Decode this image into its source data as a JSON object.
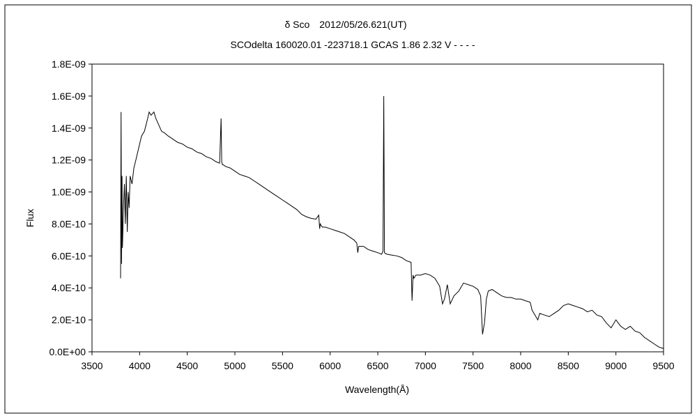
{
  "chart_data": {
    "type": "line",
    "title": "δ Sco　2012/05/26.621(UT)",
    "subtitle": "SCOdelta 160020.01 -223718.1 GCAS 1.86 2.32 V - - - -",
    "xlabel": "Wavelength(Å)",
    "ylabel": "Flux",
    "xlim": [
      3500,
      9500
    ],
    "ylim": [
      0,
      1.8e-09
    ],
    "grid": false,
    "legend": "none",
    "x_ticks": [
      "3500",
      "4000",
      "4500",
      "5000",
      "5500",
      "6000",
      "6500",
      "7000",
      "7500",
      "8000",
      "8500",
      "9000",
      "9500"
    ],
    "y_ticks": [
      "0.0E+00",
      "2.0E-10",
      "4.0E-10",
      "6.0E-10",
      "8.0E-10",
      "1.0E-09",
      "1.2E-09",
      "1.4E-09",
      "1.6E-09",
      "1.8E-09"
    ],
    "line_color": "#000000",
    "series": [
      {
        "x": [
          3800,
          3805,
          3810,
          3815,
          3820,
          3830,
          3840,
          3850,
          3860,
          3870,
          3880,
          3890,
          3900,
          3920,
          3940,
          3960,
          3980,
          4000,
          4020,
          4050,
          4080,
          4100,
          4120,
          4150,
          4170,
          4200,
          4230,
          4260,
          4300,
          4350,
          4400,
          4450,
          4500,
          4550,
          4600,
          4650,
          4700,
          4750,
          4800,
          4840,
          4855,
          4862,
          4870,
          4880,
          4900,
          4950,
          5000,
          5050,
          5100,
          5150,
          5200,
          5250,
          5300,
          5350,
          5400,
          5450,
          5500,
          5550,
          5600,
          5650,
          5700,
          5750,
          5800,
          5850,
          5880,
          5890,
          5896,
          5905,
          5920,
          5950,
          6000,
          6050,
          6100,
          6150,
          6200,
          6250,
          6280,
          6290,
          6300,
          6350,
          6400,
          6450,
          6500,
          6540,
          6555,
          6563,
          6570,
          6580,
          6600,
          6650,
          6700,
          6750,
          6800,
          6850,
          6860,
          6870,
          6880,
          6900,
          6950,
          7000,
          7050,
          7100,
          7150,
          7180,
          7200,
          7230,
          7260,
          7300,
          7350,
          7400,
          7450,
          7500,
          7550,
          7580,
          7600,
          7620,
          7640,
          7660,
          7700,
          7750,
          7800,
          7850,
          7900,
          7950,
          8000,
          8050,
          8100,
          8120,
          8150,
          8180,
          8200,
          8250,
          8300,
          8350,
          8400,
          8450,
          8500,
          8550,
          8600,
          8650,
          8700,
          8750,
          8800,
          8850,
          8900,
          8950,
          9000,
          9050,
          9100,
          9150,
          9200,
          9250,
          9300,
          9350,
          9400,
          9450,
          9500
        ],
        "y": [
          4.6e-10,
          1.5e-09,
          5.5e-10,
          1.1e-09,
          6.5e-10,
          9e-10,
          1.05e-09,
          8e-10,
          1.1e-09,
          7.5e-10,
          1e-09,
          9e-10,
          1.1e-09,
          1.05e-09,
          1.15e-09,
          1.2e-09,
          1.25e-09,
          1.3e-09,
          1.35e-09,
          1.38e-09,
          1.45e-09,
          1.5e-09,
          1.48e-09,
          1.5e-09,
          1.46e-09,
          1.42e-09,
          1.38e-09,
          1.37e-09,
          1.35e-09,
          1.33e-09,
          1.31e-09,
          1.3e-09,
          1.28e-09,
          1.27e-09,
          1.25e-09,
          1.24e-09,
          1.22e-09,
          1.21e-09,
          1.19e-09,
          1.18e-09,
          1.46e-09,
          1.19e-09,
          1.17e-09,
          1.17e-09,
          1.16e-09,
          1.15e-09,
          1.13e-09,
          1.11e-09,
          1.1e-09,
          1.09e-09,
          1.07e-09,
          1.05e-09,
          1.03e-09,
          1.01e-09,
          9.9e-10,
          9.7e-10,
          9.5e-10,
          9.3e-10,
          9.1e-10,
          8.9e-10,
          8.6e-10,
          8.45e-10,
          8.35e-10,
          8.3e-10,
          8.55e-10,
          7.7e-10,
          8e-10,
          7.9e-10,
          7.8e-10,
          7.8e-10,
          7.7e-10,
          7.6e-10,
          7.5e-10,
          7.4e-10,
          7.2e-10,
          7e-10,
          6.8e-10,
          6.2e-10,
          6.6e-10,
          6.6e-10,
          6.4e-10,
          6.3e-10,
          6.2e-10,
          6.1e-10,
          6.3e-10,
          1.6e-09,
          6.2e-10,
          6.15e-10,
          6.1e-10,
          6.05e-10,
          6e-10,
          5.9e-10,
          5.7e-10,
          5.6e-10,
          3.2e-10,
          4.8e-10,
          4.6e-10,
          4.8e-10,
          4.8e-10,
          4.9e-10,
          4.8e-10,
          4.6e-10,
          4.1e-10,
          3e-10,
          3.3e-10,
          4.2e-10,
          3e-10,
          3.5e-10,
          3.8e-10,
          4.3e-10,
          4.2e-10,
          4.1e-10,
          3.9e-10,
          3.5e-10,
          1.1e-10,
          1.8e-10,
          3.3e-10,
          3.8e-10,
          3.9e-10,
          3.7e-10,
          3.5e-10,
          3.4e-10,
          3.4e-10,
          3.3e-10,
          3.3e-10,
          3.2e-10,
          3.1e-10,
          2.6e-10,
          2.3e-10,
          2e-10,
          2.4e-10,
          2.3e-10,
          2.2e-10,
          2.4e-10,
          2.6e-10,
          2.9e-10,
          3e-10,
          2.9e-10,
          2.8e-10,
          2.7e-10,
          2.5e-10,
          2.6e-10,
          2.3e-10,
          2.2e-10,
          1.8e-10,
          1.5e-10,
          2e-10,
          1.6e-10,
          1.4e-10,
          1.6e-10,
          1.3e-10,
          1.2e-10,
          9e-11,
          7e-11,
          5e-11,
          3e-11,
          2e-11
        ]
      }
    ]
  }
}
